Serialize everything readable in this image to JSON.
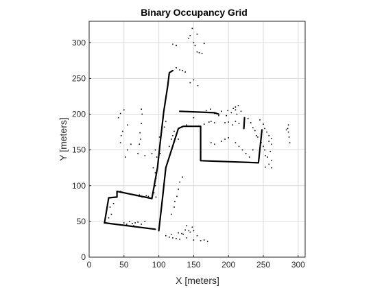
{
  "chart_data": {
    "type": "heatmap",
    "title": "Binary Occupancy Grid",
    "xlabel": "X [meters]",
    "ylabel": "Y [meters]",
    "xlim": [
      0,
      310
    ],
    "ylim": [
      0,
      330
    ],
    "xticks": [
      0,
      50,
      100,
      150,
      200,
      250,
      300
    ],
    "yticks": [
      0,
      50,
      100,
      150,
      200,
      250,
      300
    ],
    "grid": true,
    "colors": {
      "occupied": "#000000",
      "free": "#ffffff",
      "grid": "#dcdcdc",
      "axis": "#262626"
    },
    "occupied_walls": [
      {
        "name": "lower-room-top-wall",
        "points": [
          [
            40,
            92
          ],
          [
            90,
            82
          ]
        ]
      },
      {
        "name": "lower-room-left-notch",
        "points": [
          [
            40,
            92
          ],
          [
            40,
            84
          ],
          [
            28,
            83
          ]
        ]
      },
      {
        "name": "lower-room-left-wall",
        "points": [
          [
            28,
            83
          ],
          [
            22,
            48
          ]
        ]
      },
      {
        "name": "lower-room-bottom-wall",
        "points": [
          [
            22,
            48
          ],
          [
            95,
            39
          ]
        ]
      },
      {
        "name": "corridor-left-wall",
        "points": [
          [
            90,
            82
          ],
          [
            98,
            125
          ],
          [
            102,
            160
          ],
          [
            107,
            203
          ],
          [
            113,
            241
          ],
          [
            115,
            258
          ],
          [
            120,
            261
          ]
        ]
      },
      {
        "name": "corridor-right-wall",
        "points": [
          [
            100,
            37
          ],
          [
            105,
            80
          ],
          [
            110,
            125
          ],
          [
            128,
            180
          ],
          [
            135,
            183
          ],
          [
            160,
            183
          ],
          [
            160,
            135
          ],
          [
            243,
            132
          ],
          [
            248,
            178
          ]
        ]
      },
      {
        "name": "upper-room-top-wall",
        "points": [
          [
            130,
            204
          ],
          [
            180,
            202
          ],
          [
            186,
            200
          ]
        ]
      },
      {
        "name": "upper-room-right-wall",
        "points": [
          [
            223,
            195
          ],
          [
            222,
            180
          ]
        ]
      }
    ],
    "occupied_cells": [
      [
        46,
        45
      ],
      [
        50,
        48
      ],
      [
        54,
        46
      ],
      [
        58,
        50
      ],
      [
        62,
        47
      ],
      [
        66,
        48
      ],
      [
        70,
        49
      ],
      [
        75,
        46
      ],
      [
        80,
        50
      ],
      [
        52,
        44
      ],
      [
        64,
        44
      ],
      [
        110,
        30
      ],
      [
        115,
        28
      ],
      [
        120,
        27
      ],
      [
        125,
        26
      ],
      [
        130,
        25
      ],
      [
        140,
        27
      ],
      [
        150,
        24
      ],
      [
        160,
        23
      ],
      [
        165,
        24
      ],
      [
        170,
        22
      ],
      [
        140,
        44
      ],
      [
        148,
        42
      ],
      [
        155,
        30
      ],
      [
        135,
        32
      ],
      [
        145,
        35
      ],
      [
        45,
        92
      ],
      [
        47,
        91
      ],
      [
        82,
        86
      ],
      [
        85,
        85
      ],
      [
        120,
        298
      ],
      [
        125,
        296
      ],
      [
        145,
        310
      ],
      [
        148,
        320
      ],
      [
        150,
        300
      ],
      [
        152,
        296
      ],
      [
        155,
        287
      ],
      [
        158,
        286
      ],
      [
        162,
        285
      ],
      [
        165,
        299
      ],
      [
        155,
        312
      ],
      [
        143,
        306
      ],
      [
        125,
        265
      ],
      [
        130,
        262
      ],
      [
        134,
        261
      ],
      [
        138,
        259
      ],
      [
        145,
        244
      ],
      [
        150,
        248
      ],
      [
        156,
        240
      ],
      [
        75,
        187
      ],
      [
        73,
        174
      ],
      [
        74,
        165
      ],
      [
        72,
        158
      ],
      [
        75,
        207
      ],
      [
        76,
        200
      ],
      [
        50,
        206
      ],
      [
        45,
        201
      ],
      [
        42,
        195
      ],
      [
        55,
        185
      ],
      [
        48,
        176
      ],
      [
        46,
        170
      ],
      [
        45,
        160
      ],
      [
        60,
        158
      ],
      [
        70,
        145
      ],
      [
        80,
        142
      ],
      [
        90,
        145
      ],
      [
        55,
        150
      ],
      [
        52,
        140
      ],
      [
        165,
        186
      ],
      [
        172,
        189
      ],
      [
        180,
        188
      ],
      [
        195,
        188
      ],
      [
        200,
        189
      ],
      [
        210,
        190
      ],
      [
        206,
        185
      ],
      [
        215,
        187
      ],
      [
        175,
        190
      ],
      [
        180,
        201
      ],
      [
        186,
        198
      ],
      [
        190,
        204
      ],
      [
        199,
        205
      ],
      [
        204,
        202
      ],
      [
        197,
        198
      ],
      [
        228,
        194
      ],
      [
        232,
        188
      ],
      [
        235,
        181
      ],
      [
        238,
        177
      ],
      [
        240,
        170
      ],
      [
        242,
        168
      ],
      [
        247,
        160
      ],
      [
        250,
        155
      ],
      [
        252,
        150
      ],
      [
        253,
        142
      ],
      [
        245,
        192
      ],
      [
        250,
        186
      ],
      [
        252,
        180
      ],
      [
        255,
        175
      ],
      [
        258,
        170
      ],
      [
        262,
        166
      ],
      [
        258,
        162
      ],
      [
        262,
        158
      ],
      [
        260,
        148
      ],
      [
        256,
        140
      ],
      [
        262,
        135
      ],
      [
        258,
        130
      ],
      [
        262,
        125
      ],
      [
        253,
        126
      ],
      [
        285,
        180
      ],
      [
        286,
        175
      ],
      [
        287,
        168
      ],
      [
        288,
        160
      ],
      [
        286,
        185
      ],
      [
        283,
        178
      ],
      [
        207,
        208
      ],
      [
        210,
        206
      ],
      [
        214,
        212
      ],
      [
        212,
        200
      ],
      [
        218,
        204
      ],
      [
        92,
        125
      ],
      [
        95,
        118
      ],
      [
        96,
        110
      ],
      [
        95,
        100
      ],
      [
        93,
        90
      ],
      [
        96,
        84
      ],
      [
        118,
        60
      ],
      [
        122,
        70
      ],
      [
        123,
        78
      ],
      [
        126,
        85
      ],
      [
        128,
        95
      ],
      [
        130,
        105
      ],
      [
        134,
        112
      ],
      [
        118,
        32
      ],
      [
        128,
        34
      ],
      [
        133,
        33
      ],
      [
        138,
        38
      ],
      [
        143,
        37
      ],
      [
        150,
        37
      ],
      [
        95,
        150
      ],
      [
        97,
        140
      ],
      [
        102,
        145
      ],
      [
        101,
        168
      ],
      [
        104,
        175
      ],
      [
        108,
        182
      ],
      [
        110,
        190
      ],
      [
        115,
        155
      ],
      [
        118,
        165
      ],
      [
        120,
        170
      ],
      [
        122,
        176
      ],
      [
        125,
        172
      ],
      [
        128,
        165
      ],
      [
        175,
        160
      ],
      [
        180,
        158
      ],
      [
        190,
        162
      ],
      [
        195,
        165
      ],
      [
        200,
        167
      ],
      [
        210,
        160
      ],
      [
        215,
        155
      ],
      [
        220,
        150
      ],
      [
        225,
        145
      ],
      [
        230,
        140
      ],
      [
        235,
        150
      ],
      [
        210,
        210
      ],
      [
        168,
        205
      ],
      [
        174,
        207
      ],
      [
        140,
        185
      ],
      [
        150,
        195
      ],
      [
        30,
        70
      ],
      [
        25,
        65
      ],
      [
        32,
        60
      ],
      [
        28,
        55
      ],
      [
        35,
        75
      ],
      [
        62,
        88
      ],
      [
        68,
        86
      ],
      [
        72,
        87
      ],
      [
        76,
        84
      ]
    ]
  }
}
